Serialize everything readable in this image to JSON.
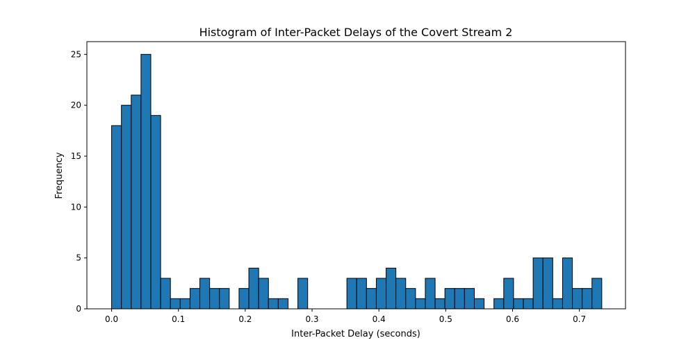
{
  "chart_data": {
    "type": "bar",
    "title": "Histogram of Inter-Packet Delays of the Covert Stream 2",
    "xlabel": "Inter-Packet Delay (seconds)",
    "ylabel": "Frequency",
    "xlim": [
      -0.037,
      0.769
    ],
    "ylim": [
      0,
      26.25
    ],
    "bin_start": 0.0,
    "bin_width": 0.01467,
    "values": [
      18,
      20,
      21,
      25,
      19,
      3,
      1,
      1,
      2,
      3,
      2,
      2,
      0,
      2,
      4,
      3,
      1,
      1,
      0,
      3,
      0,
      0,
      0,
      0,
      3,
      3,
      2,
      3,
      4,
      3,
      2,
      1,
      3,
      1,
      2,
      2,
      2,
      1,
      0,
      1,
      3,
      1,
      1,
      5,
      5,
      1,
      5,
      2,
      2,
      3
    ],
    "xticks": [
      0.0,
      0.1,
      0.2,
      0.3,
      0.4,
      0.5,
      0.6,
      0.7
    ],
    "xtick_labels": [
      "0.0",
      "0.1",
      "0.2",
      "0.3",
      "0.4",
      "0.5",
      "0.6",
      "0.7"
    ],
    "yticks": [
      0,
      5,
      10,
      15,
      20,
      25
    ],
    "ytick_labels": [
      "0",
      "5",
      "10",
      "15",
      "20",
      "25"
    ],
    "bar_color": "#1f77b4",
    "edge_color": "#000000",
    "grid": false,
    "legend": false
  }
}
